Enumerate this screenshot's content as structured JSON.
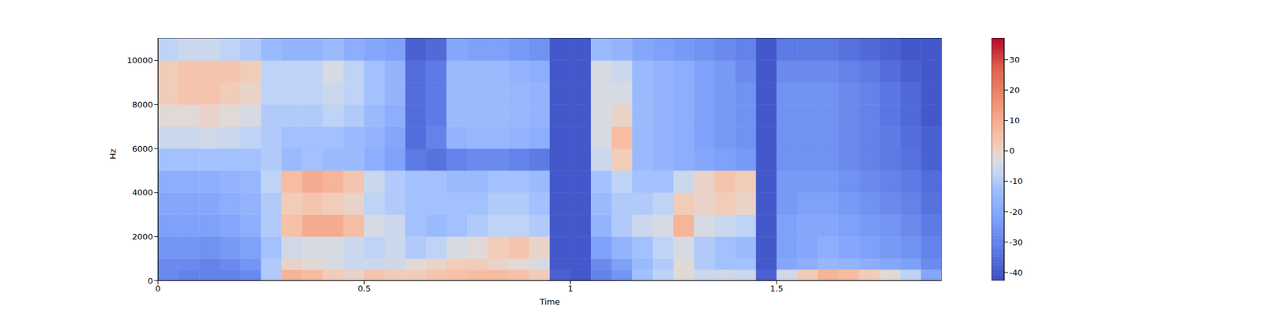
{
  "chart_data": {
    "type": "heatmap",
    "xlabel": "Time",
    "ylabel": "Hz",
    "xlim": [
      0,
      1.9
    ],
    "xticks": [
      0,
      0.5,
      1,
      1.5
    ],
    "ylim": [
      0,
      11025
    ],
    "yticks": [
      0,
      2000,
      4000,
      6000,
      8000,
      10000
    ],
    "x_bins": [
      0,
      0.05,
      0.1,
      0.15,
      0.2,
      0.25,
      0.3,
      0.35,
      0.4,
      0.45,
      0.5,
      0.55,
      0.6,
      0.65,
      0.7,
      0.75,
      0.8,
      0.85,
      0.9,
      0.95,
      1.0,
      1.05,
      1.1,
      1.15,
      1.2,
      1.25,
      1.3,
      1.35,
      1.4,
      1.45,
      1.5,
      1.55,
      1.6,
      1.65,
      1.7,
      1.75,
      1.8,
      1.85,
      1.9
    ],
    "y_bins": [
      0,
      500,
      1000,
      2000,
      3000,
      4000,
      5000,
      6000,
      7000,
      8000,
      9000,
      10000,
      11025
    ],
    "cells": [
      [
        -28,
        -30,
        -30,
        -30,
        -28,
        -10,
        8,
        6,
        2,
        0,
        4,
        2,
        2,
        4,
        5,
        6,
        6,
        5,
        2,
        -38,
        -40,
        -30,
        -25,
        -12,
        -8,
        -2,
        -6,
        -5,
        -6,
        -38,
        -5,
        2,
        8,
        6,
        2,
        -2,
        -8,
        -20
      ],
      [
        -28,
        -28,
        -30,
        -28,
        -25,
        -10,
        0,
        -2,
        -4,
        -6,
        -6,
        -5,
        -2,
        0,
        2,
        2,
        0,
        -2,
        -4,
        -40,
        -40,
        -28,
        -22,
        -14,
        -10,
        -2,
        -10,
        -12,
        -12,
        -40,
        -20,
        -18,
        -15,
        -16,
        -18,
        -20,
        -22,
        -28
      ],
      [
        -25,
        -25,
        -26,
        -24,
        -22,
        -12,
        -5,
        -4,
        -4,
        -6,
        -8,
        -6,
        -10,
        -8,
        -4,
        -2,
        2,
        4,
        0,
        -40,
        -40,
        -22,
        -16,
        -12,
        -8,
        -4,
        -10,
        -12,
        -14,
        -40,
        -22,
        -20,
        -18,
        -20,
        -22,
        -24,
        -26,
        -30
      ],
      [
        -22,
        -22,
        -22,
        -20,
        -18,
        -10,
        5,
        10,
        10,
        6,
        -4,
        -6,
        -12,
        -14,
        -12,
        -10,
        -8,
        -8,
        -10,
        -40,
        -40,
        -16,
        -10,
        -6,
        -4,
        8,
        -4,
        -6,
        -8,
        -40,
        -22,
        -20,
        -20,
        -22,
        -24,
        -25,
        -28,
        -32
      ],
      [
        -20,
        -20,
        -20,
        -18,
        -16,
        -10,
        2,
        4,
        2,
        0,
        -8,
        -10,
        -12,
        -12,
        -12,
        -12,
        -10,
        -10,
        -12,
        -40,
        -40,
        -14,
        -10,
        -10,
        -8,
        2,
        0,
        2,
        0,
        -40,
        -24,
        -22,
        -22,
        -24,
        -26,
        -28,
        -30,
        -34
      ],
      [
        -18,
        -18,
        -18,
        -16,
        -15,
        -8,
        6,
        10,
        8,
        4,
        -6,
        -10,
        -12,
        -12,
        -14,
        -14,
        -12,
        -12,
        -14,
        -40,
        -40,
        -12,
        -8,
        -12,
        -12,
        -6,
        0,
        4,
        2,
        -40,
        -24,
        -24,
        -24,
        -26,
        -28,
        -30,
        -32,
        -35
      ],
      [
        -12,
        -12,
        -12,
        -12,
        -12,
        -10,
        -14,
        -12,
        -14,
        -14,
        -18,
        -22,
        -32,
        -34,
        -30,
        -28,
        -28,
        -30,
        -32,
        -40,
        -40,
        -6,
        2,
        -14,
        -16,
        -18,
        -20,
        -22,
        -24,
        -40,
        -26,
        -26,
        -26,
        -28,
        -30,
        -32,
        -34,
        -38
      ],
      [
        -6,
        -6,
        -5,
        -6,
        -8,
        -10,
        -12,
        -12,
        -12,
        -14,
        -16,
        -20,
        -35,
        -30,
        -16,
        -15,
        -15,
        -16,
        -18,
        -40,
        -40,
        -4,
        6,
        -14,
        -16,
        -18,
        -22,
        -24,
        -26,
        -40,
        -26,
        -26,
        -26,
        -28,
        -30,
        -32,
        -35,
        -38
      ],
      [
        -2,
        -2,
        0,
        -2,
        -4,
        -10,
        -10,
        -10,
        -8,
        -10,
        -14,
        -18,
        -35,
        -32,
        -14,
        -14,
        -14,
        -15,
        -16,
        -40,
        -40,
        -4,
        0,
        -14,
        -16,
        -18,
        -22,
        -24,
        -26,
        -40,
        -26,
        -26,
        -26,
        -28,
        -30,
        -33,
        -36,
        -40
      ],
      [
        2,
        4,
        4,
        2,
        0,
        -8,
        -8,
        -8,
        -6,
        -8,
        -12,
        -16,
        -35,
        -32,
        -14,
        -14,
        -14,
        -15,
        -16,
        -40,
        -40,
        -4,
        -4,
        -14,
        -16,
        -18,
        -22,
        -24,
        -26,
        -40,
        -26,
        -26,
        -26,
        -28,
        -30,
        -33,
        -36,
        -40
      ],
      [
        2,
        4,
        4,
        4,
        2,
        -8,
        -8,
        -8,
        -4,
        -8,
        -12,
        -16,
        -35,
        -32,
        -14,
        -14,
        -14,
        -16,
        -18,
        -40,
        -40,
        -4,
        -6,
        -14,
        -16,
        -18,
        -22,
        -24,
        -28,
        -40,
        -28,
        -28,
        -28,
        -30,
        -32,
        -35,
        -38,
        -40
      ],
      [
        -8,
        -6,
        -6,
        -8,
        -10,
        -14,
        -16,
        -16,
        -14,
        -18,
        -20,
        -22,
        -38,
        -36,
        -20,
        -22,
        -22,
        -24,
        -26,
        -40,
        -40,
        -14,
        -16,
        -20,
        -22,
        -24,
        -26,
        -28,
        -30,
        -40,
        -32,
        -32,
        -32,
        -34,
        -36,
        -38,
        -40,
        -40
      ]
    ],
    "colorbar": {
      "range": [
        -42.7,
        37.2
      ],
      "ticks": [
        -40,
        -30,
        -20,
        -10,
        0,
        10,
        20,
        30
      ]
    }
  }
}
